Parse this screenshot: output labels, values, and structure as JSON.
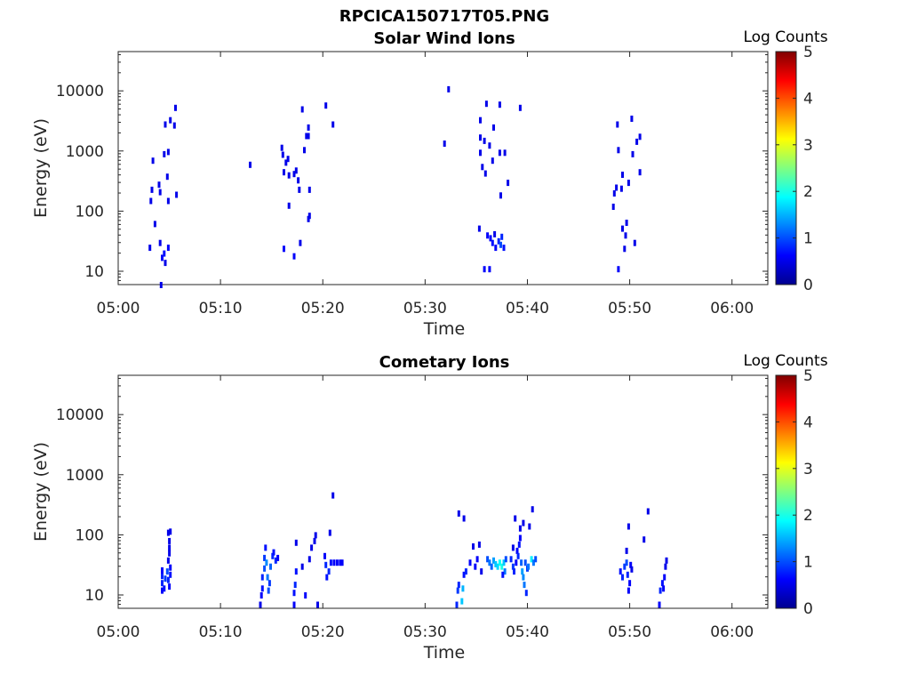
{
  "figure_title": "RPCICA150717T05.PNG",
  "colormap": [
    "#00008f",
    "#0000ff",
    "#0080ff",
    "#00ffff",
    "#80ff80",
    "#ffff00",
    "#ff8000",
    "#ff0000",
    "#800000"
  ],
  "chart_data": [
    {
      "type": "heatmap",
      "title": "Solar Wind Ions",
      "xlabel": "Time",
      "ylabel": "Energy (eV)",
      "x_ticks": [
        "05:00",
        "05:10",
        "05:20",
        "05:30",
        "05:40",
        "05:50",
        "06:00"
      ],
      "y_ticks": [
        "10",
        "100",
        "1000",
        "10000"
      ],
      "x_range_minutes": [
        0,
        63.5
      ],
      "y_range_ev": [
        6,
        45000
      ],
      "y_scale": "log",
      "colorbar": {
        "label": "Log Counts",
        "ticks": [
          "0",
          "1",
          "2",
          "3",
          "4",
          "5"
        ],
        "range": [
          0,
          5
        ]
      },
      "points": [
        [
          4.2,
          6,
          0.5
        ],
        [
          4.3,
          17,
          0.6
        ],
        [
          4.5,
          20,
          0.7
        ],
        [
          4.6,
          14,
          0.5
        ],
        [
          4.1,
          30,
          0.5
        ],
        [
          4.9,
          25,
          0.6
        ],
        [
          3.1,
          25,
          0.5
        ],
        [
          3.6,
          62,
          0.5
        ],
        [
          3.2,
          150,
          0.5
        ],
        [
          3.3,
          230,
          0.5
        ],
        [
          4.1,
          210,
          0.5
        ],
        [
          4.9,
          150,
          0.5
        ],
        [
          5.7,
          190,
          0.5
        ],
        [
          4.0,
          280,
          0.5
        ],
        [
          4.8,
          380,
          0.5
        ],
        [
          3.4,
          700,
          0.5
        ],
        [
          4.5,
          900,
          0.5
        ],
        [
          4.9,
          980,
          0.5
        ],
        [
          4.6,
          2800,
          0.5
        ],
        [
          5.1,
          3300,
          0.5
        ],
        [
          5.5,
          2700,
          0.5
        ],
        [
          5.6,
          5300,
          0.5
        ],
        [
          12.9,
          600,
          0.5
        ],
        [
          16.0,
          1150,
          0.5
        ],
        [
          16.1,
          880,
          0.5
        ],
        [
          16.4,
          650,
          0.5
        ],
        [
          16.6,
          750,
          0.5
        ],
        [
          16.2,
          450,
          0.5
        ],
        [
          16.7,
          400,
          0.5
        ],
        [
          17.2,
          420,
          0.5
        ],
        [
          17.4,
          480,
          0.5
        ],
        [
          17.6,
          330,
          0.5
        ],
        [
          17.7,
          230,
          0.5
        ],
        [
          16.7,
          125,
          0.5
        ],
        [
          16.2,
          24,
          0.6
        ],
        [
          17.2,
          18,
          0.6
        ],
        [
          17.8,
          30,
          0.5
        ],
        [
          18.0,
          5000,
          0.5
        ],
        [
          18.2,
          1050,
          0.5
        ],
        [
          18.4,
          1800,
          0.5
        ],
        [
          18.6,
          1800,
          0.5
        ],
        [
          18.6,
          2500,
          0.5
        ],
        [
          18.7,
          230,
          0.5
        ],
        [
          18.6,
          75,
          0.5
        ],
        [
          18.7,
          85,
          0.5
        ],
        [
          20.3,
          5800,
          0.5
        ],
        [
          21.0,
          2800,
          0.5
        ],
        [
          32.3,
          10800,
          0.5
        ],
        [
          31.9,
          1350,
          0.5
        ],
        [
          35.4,
          3300,
          0.5
        ],
        [
          35.4,
          1700,
          0.5
        ],
        [
          35.4,
          950,
          0.5
        ],
        [
          35.6,
          550,
          0.5
        ],
        [
          35.9,
          430,
          0.5
        ],
        [
          35.8,
          1500,
          0.5
        ],
        [
          36.3,
          1250,
          0.5
        ],
        [
          36.6,
          700,
          0.5
        ],
        [
          37.3,
          950,
          0.5
        ],
        [
          37.8,
          950,
          0.5
        ],
        [
          38.1,
          300,
          0.5
        ],
        [
          37.4,
          185,
          0.5
        ],
        [
          36.0,
          6200,
          0.5
        ],
        [
          37.3,
          6000,
          0.5
        ],
        [
          39.3,
          5300,
          0.5
        ],
        [
          36.7,
          2500,
          0.5
        ],
        [
          35.3,
          52,
          0.5
        ],
        [
          35.8,
          11,
          0.6
        ],
        [
          36.3,
          11,
          0.6
        ],
        [
          36.1,
          40,
          0.6
        ],
        [
          36.4,
          36,
          0.6
        ],
        [
          36.6,
          30,
          0.7
        ],
        [
          36.9,
          25,
          0.6
        ],
        [
          37.2,
          32,
          0.8
        ],
        [
          37.4,
          28,
          1.0
        ],
        [
          37.5,
          38,
          0.8
        ],
        [
          37.7,
          25,
          0.7
        ],
        [
          36.8,
          42,
          0.5
        ],
        [
          48.4,
          120,
          0.5
        ],
        [
          48.5,
          200,
          0.5
        ],
        [
          48.7,
          250,
          0.5
        ],
        [
          49.2,
          240,
          0.5
        ],
        [
          49.3,
          410,
          0.5
        ],
        [
          48.9,
          1050,
          0.5
        ],
        [
          48.8,
          2800,
          0.5
        ],
        [
          49.7,
          65,
          0.5
        ],
        [
          49.3,
          52,
          0.5
        ],
        [
          49.6,
          40,
          0.5
        ],
        [
          49.5,
          24,
          0.5
        ],
        [
          50.5,
          30,
          0.5
        ],
        [
          49.9,
          300,
          0.5
        ],
        [
          50.3,
          900,
          0.5
        ],
        [
          50.7,
          1450,
          0.5
        ],
        [
          51.0,
          1750,
          0.5
        ],
        [
          50.2,
          3500,
          0.5
        ],
        [
          51.0,
          450,
          0.5
        ],
        [
          48.9,
          11,
          0.6
        ]
      ]
    },
    {
      "type": "heatmap",
      "title": "Cometary Ions",
      "xlabel": "Time",
      "ylabel": "Energy (eV)",
      "x_ticks": [
        "05:00",
        "05:10",
        "05:20",
        "05:30",
        "05:40",
        "05:50",
        "06:00"
      ],
      "y_ticks": [
        "10",
        "100",
        "1000",
        "10000"
      ],
      "x_range_minutes": [
        0,
        63.5
      ],
      "y_range_ev": [
        6,
        45000
      ],
      "y_scale": "log",
      "colorbar": {
        "label": "Log Counts",
        "ticks": [
          "0",
          "1",
          "2",
          "3",
          "4",
          "5"
        ],
        "range": [
          0,
          5
        ]
      },
      "points": [
        [
          4.3,
          12,
          0.6
        ],
        [
          4.3,
          16,
          0.8
        ],
        [
          4.3,
          21,
          0.8
        ],
        [
          4.3,
          26,
          0.6
        ],
        [
          4.5,
          13,
          0.7
        ],
        [
          4.6,
          19,
          0.9
        ],
        [
          4.8,
          25,
          1.0
        ],
        [
          4.9,
          18,
          0.8
        ],
        [
          5.0,
          14,
          0.6
        ],
        [
          5.1,
          22,
          0.7
        ],
        [
          5.1,
          29,
          0.6
        ],
        [
          4.9,
          38,
          0.5
        ],
        [
          5.0,
          50,
          0.5
        ],
        [
          5.0,
          62,
          0.5
        ],
        [
          5.0,
          80,
          0.5
        ],
        [
          4.9,
          110,
          0.5
        ],
        [
          5.1,
          115,
          0.5
        ],
        [
          13.9,
          7,
          0.5
        ],
        [
          14.0,
          10,
          0.6
        ],
        [
          14.1,
          13,
          0.7
        ],
        [
          14.1,
          20,
          0.8
        ],
        [
          14.3,
          28,
          1.0
        ],
        [
          14.3,
          42,
          0.9
        ],
        [
          14.4,
          62,
          0.7
        ],
        [
          14.5,
          35,
          1.3
        ],
        [
          14.6,
          20,
          1.2
        ],
        [
          14.7,
          12,
          1.0
        ],
        [
          14.8,
          16,
          0.9
        ],
        [
          14.9,
          30,
          1.1
        ],
        [
          15.1,
          45,
          0.8
        ],
        [
          15.2,
          52,
          0.7
        ],
        [
          15.4,
          38,
          0.8
        ],
        [
          15.6,
          42,
          0.6
        ],
        [
          17.2,
          7,
          0.6
        ],
        [
          17.2,
          11,
          0.7
        ],
        [
          17.3,
          15,
          0.8
        ],
        [
          17.4,
          25,
          0.7
        ],
        [
          17.4,
          75,
          0.5
        ],
        [
          18.0,
          30,
          0.5
        ],
        [
          18.3,
          10,
          0.6
        ],
        [
          18.7,
          40,
          0.5
        ],
        [
          18.9,
          62,
          0.5
        ],
        [
          19.2,
          80,
          0.5
        ],
        [
          19.3,
          100,
          0.5
        ],
        [
          19.5,
          7,
          0.5
        ],
        [
          20.2,
          45,
          0.6
        ],
        [
          20.3,
          32,
          0.8
        ],
        [
          20.4,
          20,
          0.7
        ],
        [
          20.6,
          25,
          0.8
        ],
        [
          20.8,
          35,
          0.7
        ],
        [
          20.7,
          110,
          0.5
        ],
        [
          21.1,
          35,
          0.6
        ],
        [
          21.4,
          35,
          0.6
        ],
        [
          21.7,
          35,
          0.6
        ],
        [
          21.9,
          35,
          0.6
        ],
        [
          21.0,
          460,
          0.5
        ],
        [
          33.1,
          7,
          0.8
        ],
        [
          33.2,
          12,
          0.9
        ],
        [
          33.3,
          15,
          0.8
        ],
        [
          33.6,
          8,
          1.6
        ],
        [
          33.7,
          13,
          1.5
        ],
        [
          33.8,
          22,
          0.7
        ],
        [
          34.0,
          25,
          0.8
        ],
        [
          33.8,
          190,
          0.5
        ],
        [
          33.3,
          230,
          0.5
        ],
        [
          34.4,
          35,
          0.6
        ],
        [
          34.7,
          65,
          0.5
        ],
        [
          34.9,
          30,
          0.6
        ],
        [
          35.1,
          40,
          0.6
        ],
        [
          35.5,
          25,
          0.5
        ],
        [
          35.3,
          70,
          0.5
        ],
        [
          36.1,
          40,
          1.0
        ],
        [
          36.3,
          35,
          1.2
        ],
        [
          36.5,
          30,
          1.1
        ],
        [
          36.7,
          38,
          1.4
        ],
        [
          36.9,
          33,
          1.6
        ],
        [
          37.1,
          30,
          1.7
        ],
        [
          37.3,
          35,
          1.9
        ],
        [
          37.5,
          30,
          2.0
        ],
        [
          37.7,
          35,
          1.6
        ],
        [
          37.8,
          25,
          1.2
        ],
        [
          37.9,
          40,
          1.0
        ],
        [
          37.6,
          22,
          0.7
        ],
        [
          38.4,
          40,
          0.8
        ],
        [
          38.6,
          30,
          0.9
        ],
        [
          38.7,
          25,
          0.8
        ],
        [
          38.9,
          35,
          0.6
        ],
        [
          38.6,
          62,
          0.5
        ],
        [
          39.0,
          55,
          0.6
        ],
        [
          39.2,
          70,
          0.7
        ],
        [
          39.3,
          90,
          0.6
        ],
        [
          39.1,
          45,
          0.8
        ],
        [
          39.4,
          35,
          1.1
        ],
        [
          39.5,
          25,
          1.4
        ],
        [
          39.6,
          20,
          1.3
        ],
        [
          39.7,
          15,
          1.2
        ],
        [
          39.9,
          11,
          0.8
        ],
        [
          40.0,
          28,
          0.9
        ],
        [
          39.6,
          160,
          0.5
        ],
        [
          39.3,
          130,
          0.5
        ],
        [
          40.2,
          140,
          0.5
        ],
        [
          40.5,
          270,
          0.5
        ],
        [
          38.8,
          190,
          0.5
        ],
        [
          40.4,
          40,
          1.8
        ],
        [
          40.6,
          35,
          1.2
        ],
        [
          40.8,
          40,
          1.0
        ],
        [
          40.1,
          30,
          1.2
        ],
        [
          39.8,
          35,
          1.0
        ],
        [
          49.1,
          25,
          0.7
        ],
        [
          49.3,
          20,
          0.8
        ],
        [
          49.5,
          30,
          0.9
        ],
        [
          49.7,
          35,
          1.0
        ],
        [
          49.8,
          22,
          0.8
        ],
        [
          50.0,
          16,
          0.6
        ],
        [
          49.9,
          12,
          0.6
        ],
        [
          49.7,
          55,
          0.5
        ],
        [
          50.1,
          32,
          0.6
        ],
        [
          50.2,
          27,
          0.5
        ],
        [
          49.9,
          140,
          0.5
        ],
        [
          51.4,
          85,
          0.5
        ],
        [
          51.8,
          250,
          0.5
        ],
        [
          52.9,
          7,
          0.6
        ],
        [
          53.0,
          12,
          0.8
        ],
        [
          53.2,
          16,
          0.7
        ],
        [
          53.4,
          20,
          0.6
        ],
        [
          53.5,
          30,
          0.5
        ],
        [
          53.6,
          38,
          0.5
        ],
        [
          53.3,
          13,
          0.6
        ]
      ]
    }
  ]
}
